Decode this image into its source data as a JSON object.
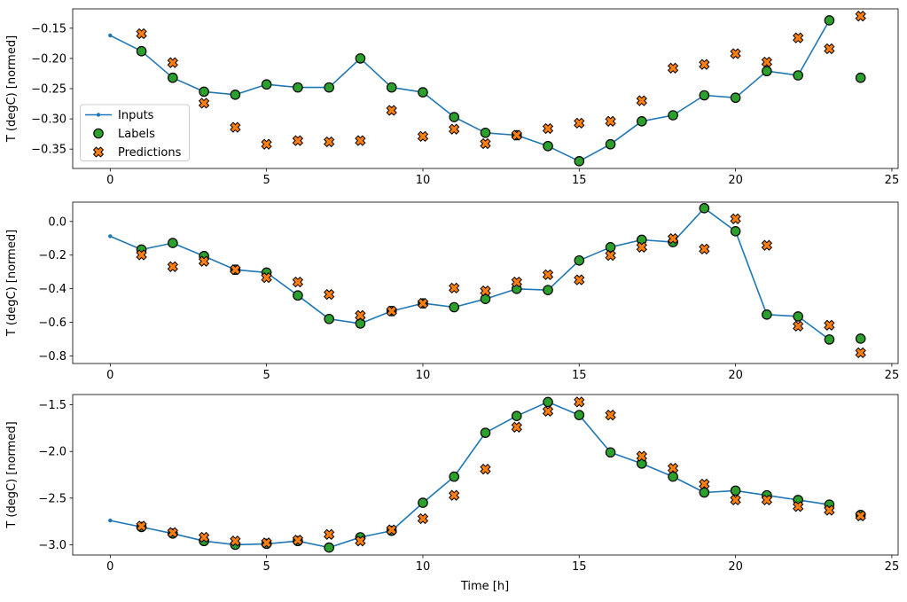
{
  "figure": {
    "xlabel": "Time [h]",
    "background": "#ffffff",
    "legend": {
      "location": "center left",
      "entries": [
        {
          "label": "Inputs",
          "marker": "line-with-dot",
          "color": "#1f77b4"
        },
        {
          "label": "Labels",
          "marker": "circle",
          "color": "#2ca02c"
        },
        {
          "label": "Predictions",
          "marker": "thick-x",
          "color": "#ff7f0e"
        }
      ]
    },
    "colors": {
      "inputs": "#1f77b4",
      "labels": "#2ca02c",
      "predictions": "#ff7f0e",
      "marker_edge": "#000000"
    }
  },
  "chart_data": [
    {
      "type": "line+scatter",
      "subplot": 1,
      "ylabel": "T (degC) [normed]",
      "xlim": [
        -1.2,
        25.2
      ],
      "ylim": [
        -0.382,
        -0.118
      ],
      "xticks": [
        0,
        5,
        10,
        15,
        20,
        25
      ],
      "xtick_labels": [
        "0",
        "5",
        "10",
        "15",
        "20",
        "25"
      ],
      "yticks": [
        -0.15,
        -0.2,
        -0.25,
        -0.3,
        -0.35
      ],
      "ytick_labels": [
        "−0.15",
        "−0.20",
        "−0.25",
        "−0.30",
        "−0.35"
      ],
      "grid": false,
      "series": [
        {
          "name": "Inputs",
          "type": "line",
          "marker": "dot",
          "color": "#1f77b4",
          "x": [
            0,
            1,
            2,
            3,
            4,
            5,
            6,
            7,
            8,
            9,
            10,
            11,
            12,
            13,
            14,
            15,
            16,
            17,
            18,
            19,
            20,
            21,
            22,
            23
          ],
          "y": [
            -0.162,
            -0.188,
            -0.232,
            -0.255,
            -0.26,
            -0.243,
            -0.248,
            -0.248,
            -0.2,
            -0.248,
            -0.256,
            -0.297,
            -0.323,
            -0.327,
            -0.345,
            -0.37,
            -0.342,
            -0.304,
            -0.294,
            -0.261,
            -0.265,
            -0.221,
            -0.228,
            -0.137
          ]
        },
        {
          "name": "Labels",
          "type": "scatter",
          "marker": "circle",
          "color": "#2ca02c",
          "x": [
            1,
            2,
            3,
            4,
            5,
            6,
            7,
            8,
            9,
            10,
            11,
            12,
            13,
            14,
            15,
            16,
            17,
            18,
            19,
            20,
            21,
            22,
            23,
            24
          ],
          "y": [
            -0.188,
            -0.232,
            -0.255,
            -0.26,
            -0.243,
            -0.248,
            -0.248,
            -0.2,
            -0.248,
            -0.256,
            -0.297,
            -0.323,
            -0.327,
            -0.345,
            -0.37,
            -0.342,
            -0.304,
            -0.294,
            -0.261,
            -0.265,
            -0.221,
            -0.228,
            -0.137,
            -0.232
          ]
        },
        {
          "name": "Predictions",
          "type": "scatter",
          "marker": "X",
          "color": "#ff7f0e",
          "x": [
            1,
            2,
            3,
            4,
            5,
            6,
            7,
            8,
            9,
            10,
            11,
            12,
            13,
            14,
            15,
            16,
            17,
            18,
            19,
            20,
            21,
            22,
            23,
            24
          ],
          "y": [
            -0.159,
            -0.207,
            -0.274,
            -0.314,
            -0.342,
            -0.336,
            -0.338,
            -0.336,
            -0.286,
            -0.329,
            -0.317,
            -0.341,
            -0.327,
            -0.316,
            -0.307,
            -0.304,
            -0.27,
            -0.216,
            -0.21,
            -0.192,
            -0.206,
            -0.166,
            -0.184,
            -0.13
          ]
        }
      ]
    },
    {
      "type": "line+scatter",
      "subplot": 2,
      "ylabel": "T (degC) [normed]",
      "xlim": [
        -1.2,
        25.2
      ],
      "ylim": [
        -0.845,
        0.115
      ],
      "xticks": [
        0,
        5,
        10,
        15,
        20,
        25
      ],
      "xtick_labels": [
        "0",
        "5",
        "10",
        "15",
        "20",
        "25"
      ],
      "yticks": [
        0.0,
        -0.2,
        -0.4,
        -0.6,
        -0.8
      ],
      "ytick_labels": [
        "0.0",
        "−0.2",
        "−0.4",
        "−0.6",
        "−0.8"
      ],
      "grid": false,
      "series": [
        {
          "name": "Inputs",
          "type": "line",
          "marker": "dot",
          "color": "#1f77b4",
          "x": [
            0,
            1,
            2,
            3,
            4,
            5,
            6,
            7,
            8,
            9,
            10,
            11,
            12,
            13,
            14,
            15,
            16,
            17,
            18,
            19,
            20,
            21,
            22,
            23
          ],
          "y": [
            -0.088,
            -0.167,
            -0.128,
            -0.206,
            -0.287,
            -0.304,
            -0.44,
            -0.58,
            -0.607,
            -0.533,
            -0.487,
            -0.51,
            -0.461,
            -0.401,
            -0.408,
            -0.232,
            -0.153,
            -0.109,
            -0.123,
            0.079,
            -0.058,
            -0.554,
            -0.565,
            -0.702
          ]
        },
        {
          "name": "Labels",
          "type": "scatter",
          "marker": "circle",
          "color": "#2ca02c",
          "x": [
            1,
            2,
            3,
            4,
            5,
            6,
            7,
            8,
            9,
            10,
            11,
            12,
            13,
            14,
            15,
            16,
            17,
            18,
            19,
            20,
            21,
            22,
            23,
            24
          ],
          "y": [
            -0.167,
            -0.128,
            -0.206,
            -0.287,
            -0.304,
            -0.44,
            -0.58,
            -0.607,
            -0.533,
            -0.487,
            -0.51,
            -0.461,
            -0.401,
            -0.408,
            -0.232,
            -0.153,
            -0.109,
            -0.123,
            0.079,
            -0.058,
            -0.554,
            -0.565,
            -0.702,
            -0.697
          ]
        },
        {
          "name": "Predictions",
          "type": "scatter",
          "marker": "X",
          "color": "#ff7f0e",
          "x": [
            1,
            2,
            3,
            4,
            5,
            6,
            7,
            8,
            9,
            10,
            11,
            12,
            13,
            14,
            15,
            16,
            17,
            18,
            19,
            20,
            21,
            22,
            23,
            24
          ],
          "y": [
            -0.199,
            -0.269,
            -0.237,
            -0.287,
            -0.334,
            -0.36,
            -0.434,
            -0.559,
            -0.533,
            -0.487,
            -0.396,
            -0.413,
            -0.36,
            -0.317,
            -0.347,
            -0.202,
            -0.153,
            -0.102,
            -0.164,
            0.016,
            -0.142,
            -0.623,
            -0.617,
            -0.781
          ]
        }
      ]
    },
    {
      "type": "line+scatter",
      "subplot": 3,
      "ylabel": "T (degC) [normed]",
      "xlim": [
        -1.2,
        25.2
      ],
      "ylim": [
        -3.11,
        -1.39
      ],
      "xticks": [
        0,
        5,
        10,
        15,
        20,
        25
      ],
      "xtick_labels": [
        "0",
        "5",
        "10",
        "15",
        "20",
        "25"
      ],
      "yticks": [
        -1.5,
        -2.0,
        -2.5,
        -3.0
      ],
      "ytick_labels": [
        "−1.5",
        "−2.0",
        "−2.5",
        "−3.0"
      ],
      "grid": false,
      "series": [
        {
          "name": "Inputs",
          "type": "line",
          "marker": "dot",
          "color": "#1f77b4",
          "x": [
            0,
            1,
            2,
            3,
            4,
            5,
            6,
            7,
            8,
            9,
            10,
            11,
            12,
            13,
            14,
            15,
            16,
            17,
            18,
            19,
            20,
            21,
            22,
            23
          ],
          "y": [
            -2.74,
            -2.81,
            -2.88,
            -2.96,
            -3.0,
            -2.99,
            -2.96,
            -3.03,
            -2.92,
            -2.85,
            -2.55,
            -2.27,
            -1.8,
            -1.62,
            -1.47,
            -1.61,
            -2.01,
            -2.13,
            -2.27,
            -2.44,
            -2.42,
            -2.47,
            -2.52,
            -2.57
          ]
        },
        {
          "name": "Labels",
          "type": "scatter",
          "marker": "circle",
          "color": "#2ca02c",
          "x": [
            1,
            2,
            3,
            4,
            5,
            6,
            7,
            8,
            9,
            10,
            11,
            12,
            13,
            14,
            15,
            16,
            17,
            18,
            19,
            20,
            21,
            22,
            23,
            24
          ],
          "y": [
            -2.81,
            -2.88,
            -2.96,
            -3.0,
            -2.99,
            -2.96,
            -3.03,
            -2.92,
            -2.85,
            -2.55,
            -2.27,
            -1.8,
            -1.62,
            -1.47,
            -1.61,
            -2.01,
            -2.13,
            -2.27,
            -2.44,
            -2.42,
            -2.47,
            -2.52,
            -2.57,
            -2.68
          ]
        },
        {
          "name": "Predictions",
          "type": "scatter",
          "marker": "X",
          "color": "#ff7f0e",
          "x": [
            1,
            2,
            3,
            4,
            5,
            6,
            7,
            8,
            9,
            10,
            11,
            12,
            13,
            14,
            15,
            16,
            17,
            18,
            19,
            20,
            21,
            22,
            23,
            24
          ],
          "y": [
            -2.8,
            -2.87,
            -2.92,
            -2.96,
            -2.98,
            -2.95,
            -2.89,
            -2.96,
            -2.84,
            -2.72,
            -2.47,
            -2.19,
            -1.74,
            -1.57,
            -1.47,
            -1.61,
            -2.05,
            -2.18,
            -2.35,
            -2.52,
            -2.52,
            -2.59,
            -2.63,
            -2.69
          ]
        }
      ]
    }
  ]
}
